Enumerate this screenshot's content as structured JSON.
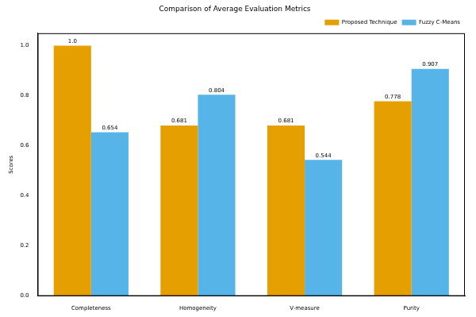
{
  "chart_data": {
    "type": "bar",
    "title": "Comparison of Average Evaluation Metrics",
    "y_label": "Scores",
    "categories": [
      "Completeness",
      "Homogeneity",
      "V-measure",
      "Purity"
    ],
    "series": [
      {
        "name": "Proposed Technique",
        "color": "#e69f00",
        "values": [
          1.0,
          0.681,
          0.681,
          0.778
        ],
        "value_labels": [
          "1.0",
          "0.681",
          "0.681",
          "0.778"
        ]
      },
      {
        "name": "Fuzzy C-Means",
        "color": "#56b4e9",
        "values": [
          0.654,
          0.804,
          0.544,
          0.907
        ]
      }
    ],
    "ylim": [
      0,
      1.05
    ],
    "yticks": [
      {
        "value": 0,
        "label": "0.0"
      },
      0.2,
      0.4,
      0.6,
      0.8,
      {
        "value": 1,
        "label": "1.0"
      }
    ],
    "grid": false,
    "legend": "upper right",
    "data_labels": true
  }
}
